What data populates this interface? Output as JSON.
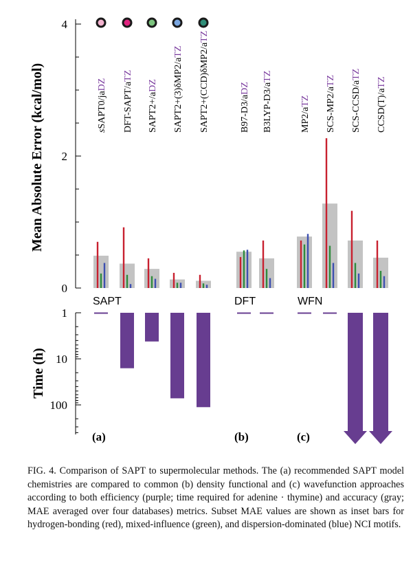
{
  "chart_data": {
    "type": "bar",
    "methods": [
      {
        "pre": "sSAPT0/ja",
        "suf": "DZ",
        "sufColor": "#7a3b9e",
        "group": "SAPT",
        "marker": "#f3b3cf",
        "mae": 0.49,
        "hb": 0.7,
        "mix": 0.22,
        "disp": 0.38,
        "time": 1.0,
        "offscale": false,
        "visible_label": "sSAPT0/jaDZ"
      },
      {
        "pre": "DFT-SAPT/a",
        "suf": "TZ",
        "sufColor": "#7a3b9e",
        "group": "SAPT",
        "marker": "#e0237f",
        "mae": 0.37,
        "hb": 0.92,
        "mix": 0.2,
        "disp": 0.06,
        "time": 16,
        "offscale": false,
        "visible_label": "DFT-SAPT/aTZ"
      },
      {
        "pre": "SAPT2+/a",
        "suf": "DZ",
        "sufColor": "#7a3b9e",
        "group": "SAPT",
        "marker": "#7cc47e",
        "mae": 0.29,
        "hb": 0.45,
        "mix": 0.18,
        "disp": 0.14,
        "time": 4.2,
        "offscale": false,
        "visible_label": "SAPT2+/aDZ"
      },
      {
        "pre": "SAPT2+(3)δMP2/a",
        "suf": "TZ",
        "sufColor": "#7a3b9e",
        "group": "SAPT",
        "marker": "#7aa6e0",
        "mae": 0.13,
        "hb": 0.23,
        "mix": 0.08,
        "disp": 0.08,
        "time": 72,
        "offscale": false,
        "visible_label": "SAPT2+(3)δMP2/aTZ"
      },
      {
        "pre": "SAPT2+(CCD)δMP2/a",
        "suf": "TZ",
        "sufColor": "#7a3b9e",
        "group": "SAPT",
        "marker": "#2f8e78",
        "mae": 0.11,
        "hb": 0.2,
        "mix": 0.07,
        "disp": 0.05,
        "time": 112,
        "offscale": false,
        "visible_label": "SAPT2+(CCD)δMP2/aTZ"
      },
      {
        "pre": "B97-D3/a",
        "suf": "DZ",
        "sufColor": "#7a3b9e",
        "group": "DFT",
        "marker": "",
        "mae": 0.55,
        "hb": 0.47,
        "mix": 0.57,
        "disp": 0.58,
        "time": 1.0,
        "offscale": false,
        "visible_label": "B97-D3/aDZ"
      },
      {
        "pre": "B3LYP-D3/a",
        "suf": "TZ",
        "sufColor": "#7a3b9e",
        "group": "DFT",
        "marker": "",
        "mae": 0.45,
        "hb": 0.72,
        "mix": 0.29,
        "disp": 0.15,
        "time": 1.0,
        "offscale": false,
        "visible_label": "B3LYP-D3/aTZ"
      },
      {
        "pre": "MP2/a",
        "suf": "TZ",
        "sufColor": "#7a3b9e",
        "group": "WFN",
        "marker": "",
        "mae": 0.78,
        "hb": 0.72,
        "mix": 0.66,
        "disp": 0.82,
        "time": 1.0,
        "offscale": false,
        "visible_label": "MP2/aTZ"
      },
      {
        "pre": "SCS-MP2/a",
        "suf": "TZ",
        "sufColor": "#7a3b9e",
        "group": "WFN",
        "marker": "",
        "mae": 1.28,
        "hb": 2.27,
        "mix": 0.64,
        "disp": 0.38,
        "time": 1.0,
        "offscale": false,
        "visible_label": "SCS-MP2/aTZ"
      },
      {
        "pre": "SCS-CCSD/a",
        "suf": "TZ",
        "sufColor": "#7a3b9e",
        "group": "WFN",
        "marker": "",
        "mae": 0.72,
        "hb": 1.17,
        "mix": 0.38,
        "disp": 0.22,
        "time": 1000,
        "offscale": true,
        "visible_label": "SCS-CCSD/aTZ"
      },
      {
        "pre": "CCSD(T)/a",
        "suf": "TZ",
        "sufColor": "#7a3b9e",
        "group": "WFN",
        "marker": "",
        "mae": 0.46,
        "hb": 0.72,
        "mix": 0.26,
        "disp": 0.18,
        "time": 1000,
        "offscale": true,
        "visible_label": "CCSD(T)/aTZ"
      }
    ],
    "top_panel": {
      "ylabel": "Mean Absolute Error (kcal/mol)",
      "ylim": [
        0,
        4
      ],
      "yticks": [
        "0",
        "2",
        "4"
      ],
      "group_labels": [
        "SAPT",
        "DFT",
        "WFN"
      ]
    },
    "bottom_panel": {
      "ylabel": "Time (h)",
      "scale": "log",
      "ylim": [
        1,
        400
      ],
      "yticks": [
        "1",
        "10",
        "100"
      ],
      "panel_labels": [
        "(a)",
        "(b)",
        "(c)"
      ]
    },
    "colors": {
      "mae": "#c3c3c3",
      "hb": "#c8202f",
      "mix": "#2e8b3c",
      "disp": "#3d4fb0",
      "time": "#673d90",
      "accent": "#7a3b9e"
    }
  },
  "caption": {
    "fig": "FIG. 4.",
    "text": "Comparison of SAPT to supermolecular methods. The (a) recommended SAPT model chemistries are compared to common (b) density functional and (c) wavefunction approaches according to both efficiency (purple; time required for adenine · thymine) and accuracy (gray; MAE averaged over four databases) metrics. Subset MAE values are shown as inset bars for hydrogen-bonding (red), mixed-influence (green), and dispersion-dominated (blue) NCI motifs."
  }
}
